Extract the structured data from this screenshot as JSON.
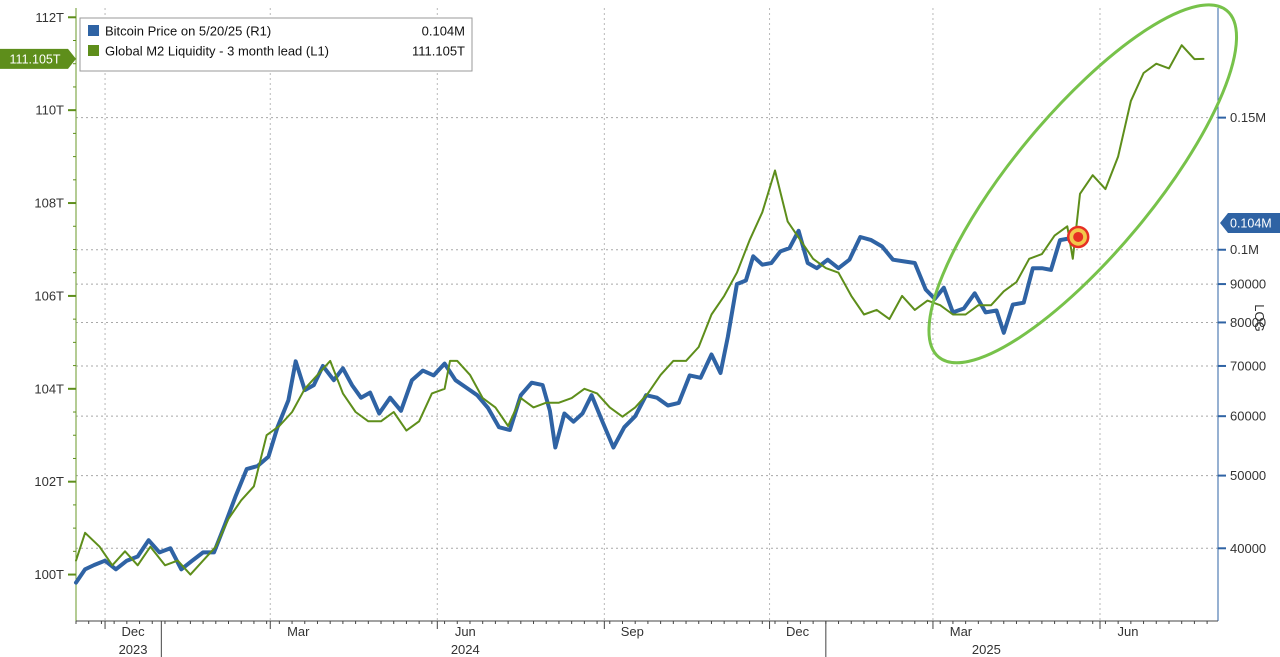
{
  "chart_data": {
    "type": "line",
    "legend": [
      {
        "label": "Bitcoin Price on 5/20/25 (R1)",
        "value": "0.104M",
        "color": "#2f63a4"
      },
      {
        "label": "Global M2 Liquidity - 3 month lead (L1)",
        "value": "111.105T",
        "color": "#5e8e1b"
      }
    ],
    "legend_position": "top-left",
    "grid": true,
    "left_axis": {
      "ticks": [
        {
          "value": 100,
          "label": "100T"
        },
        {
          "value": 102,
          "label": "102T"
        },
        {
          "value": 104,
          "label": "104T"
        },
        {
          "value": 106,
          "label": "106T"
        },
        {
          "value": 108,
          "label": "108T"
        },
        {
          "value": 110,
          "label": "110T"
        },
        {
          "value": 112,
          "label": "112T"
        }
      ],
      "range": [
        99.0,
        112.2
      ],
      "last_value_label": "111.105T"
    },
    "right_axis": {
      "scale": "log",
      "ticks": [
        {
          "value": 40000,
          "label": "40000"
        },
        {
          "value": 50000,
          "label": "50000"
        },
        {
          "value": 60000,
          "label": "60000"
        },
        {
          "value": 70000,
          "label": "70000"
        },
        {
          "value": 80000,
          "label": "80000"
        },
        {
          "value": 90000,
          "label": "90000"
        },
        {
          "value": 100000,
          "label": "0.1M"
        },
        {
          "value": 150000,
          "label": "0.15M"
        }
      ],
      "range": [
        32000,
        210000
      ],
      "last_value_label": "0.104M",
      "scale_label": "LOG"
    },
    "x_axis": {
      "range": [
        "2023-11-15",
        "2025-08-05"
      ],
      "month_labels": [
        {
          "date": "2023-12-01",
          "label": "Dec"
        },
        {
          "date": "2024-03-01",
          "label": "Mar"
        },
        {
          "date": "2024-06-01",
          "label": "Jun"
        },
        {
          "date": "2024-09-01",
          "label": "Sep"
        },
        {
          "date": "2024-12-01",
          "label": "Dec"
        },
        {
          "date": "2025-03-01",
          "label": "Mar"
        },
        {
          "date": "2025-06-01",
          "label": "Jun"
        }
      ],
      "year_labels": [
        {
          "date": "2023-12-01",
          "label": "2023"
        },
        {
          "date": "2024-06-01",
          "label": "2024"
        },
        {
          "date": "2025-03-15",
          "label": "2025"
        }
      ]
    },
    "series": [
      {
        "name": "Bitcoin Price on 5/20/25 (R1)",
        "axis": "right",
        "color": "#2f63a4",
        "points": [
          [
            "2023-11-15",
            36000
          ],
          [
            "2023-11-20",
            37500
          ],
          [
            "2023-11-25",
            38000
          ],
          [
            "2023-12-01",
            38500
          ],
          [
            "2023-12-07",
            37500
          ],
          [
            "2023-12-13",
            38500
          ],
          [
            "2023-12-19",
            39000
          ],
          [
            "2023-12-25",
            41000
          ],
          [
            "2023-12-31",
            39500
          ],
          [
            "2024-01-06",
            40000
          ],
          [
            "2024-01-12",
            37500
          ],
          [
            "2024-01-18",
            38500
          ],
          [
            "2024-01-24",
            39500
          ],
          [
            "2024-01-30",
            39500
          ],
          [
            "2024-02-05",
            43000
          ],
          [
            "2024-02-11",
            47000
          ],
          [
            "2024-02-17",
            51000
          ],
          [
            "2024-02-23",
            51500
          ],
          [
            "2024-02-29",
            53000
          ],
          [
            "2024-03-05",
            58000
          ],
          [
            "2024-03-11",
            63000
          ],
          [
            "2024-03-15",
            71000
          ],
          [
            "2024-03-20",
            65000
          ],
          [
            "2024-03-25",
            66000
          ],
          [
            "2024-03-30",
            70000
          ],
          [
            "2024-04-05",
            67000
          ],
          [
            "2024-04-10",
            69500
          ],
          [
            "2024-04-15",
            66000
          ],
          [
            "2024-04-20",
            63500
          ],
          [
            "2024-04-25",
            64500
          ],
          [
            "2024-04-30",
            60500
          ],
          [
            "2024-05-06",
            63500
          ],
          [
            "2024-05-12",
            61000
          ],
          [
            "2024-05-18",
            67000
          ],
          [
            "2024-05-24",
            69000
          ],
          [
            "2024-05-30",
            68000
          ],
          [
            "2024-06-05",
            70500
          ],
          [
            "2024-06-11",
            67000
          ],
          [
            "2024-06-17",
            65500
          ],
          [
            "2024-06-23",
            64000
          ],
          [
            "2024-06-29",
            61500
          ],
          [
            "2024-07-05",
            58000
          ],
          [
            "2024-07-11",
            57500
          ],
          [
            "2024-07-17",
            64000
          ],
          [
            "2024-07-23",
            66500
          ],
          [
            "2024-07-29",
            66000
          ],
          [
            "2024-08-02",
            61000
          ],
          [
            "2024-08-05",
            54500
          ],
          [
            "2024-08-10",
            60500
          ],
          [
            "2024-08-15",
            59000
          ],
          [
            "2024-08-20",
            60500
          ],
          [
            "2024-08-25",
            64000
          ],
          [
            "2024-08-31",
            59000
          ],
          [
            "2024-09-06",
            54500
          ],
          [
            "2024-09-12",
            58000
          ],
          [
            "2024-09-18",
            60000
          ],
          [
            "2024-09-24",
            64000
          ],
          [
            "2024-09-30",
            63500
          ],
          [
            "2024-10-06",
            62000
          ],
          [
            "2024-10-12",
            62500
          ],
          [
            "2024-10-18",
            68000
          ],
          [
            "2024-10-24",
            67500
          ],
          [
            "2024-10-30",
            72500
          ],
          [
            "2024-11-04",
            68500
          ],
          [
            "2024-11-08",
            76500
          ],
          [
            "2024-11-13",
            90000
          ],
          [
            "2024-11-18",
            91000
          ],
          [
            "2024-11-22",
            98000
          ],
          [
            "2024-11-27",
            95500
          ],
          [
            "2024-12-02",
            96000
          ],
          [
            "2024-12-07",
            99500
          ],
          [
            "2024-12-12",
            100500
          ],
          [
            "2024-12-17",
            106000
          ],
          [
            "2024-12-22",
            96000
          ],
          [
            "2024-12-27",
            94500
          ],
          [
            "2025-01-02",
            97000
          ],
          [
            "2025-01-08",
            94500
          ],
          [
            "2025-01-14",
            97000
          ],
          [
            "2025-01-20",
            104000
          ],
          [
            "2025-01-26",
            103000
          ],
          [
            "2025-02-01",
            101000
          ],
          [
            "2025-02-07",
            97000
          ],
          [
            "2025-02-13",
            96500
          ],
          [
            "2025-02-19",
            96000
          ],
          [
            "2025-02-25",
            88500
          ],
          [
            "2025-03-02",
            86000
          ],
          [
            "2025-03-07",
            89000
          ],
          [
            "2025-03-12",
            82500
          ],
          [
            "2025-03-18",
            83500
          ],
          [
            "2025-03-24",
            87500
          ],
          [
            "2025-03-30",
            82500
          ],
          [
            "2025-04-05",
            83000
          ],
          [
            "2025-04-09",
            77500
          ],
          [
            "2025-04-14",
            84500
          ],
          [
            "2025-04-20",
            85000
          ],
          [
            "2025-04-25",
            94500
          ],
          [
            "2025-04-30",
            94500
          ],
          [
            "2025-05-05",
            94000
          ],
          [
            "2025-05-10",
            103000
          ],
          [
            "2025-05-15",
            103500
          ],
          [
            "2025-05-20",
            104000
          ]
        ]
      },
      {
        "name": "Global M2 Liquidity - 3 month lead (L1)",
        "axis": "left",
        "color": "#5e8e1b",
        "points": [
          [
            "2023-11-15",
            100.3
          ],
          [
            "2023-11-20",
            100.9
          ],
          [
            "2023-11-28",
            100.6
          ],
          [
            "2023-12-05",
            100.2
          ],
          [
            "2023-12-12",
            100.5
          ],
          [
            "2023-12-19",
            100.2
          ],
          [
            "2023-12-26",
            100.6
          ],
          [
            "2024-01-03",
            100.2
          ],
          [
            "2024-01-10",
            100.3
          ],
          [
            "2024-01-17",
            100.0
          ],
          [
            "2024-01-24",
            100.3
          ],
          [
            "2024-01-31",
            100.6
          ],
          [
            "2024-02-07",
            101.2
          ],
          [
            "2024-02-14",
            101.6
          ],
          [
            "2024-02-21",
            101.9
          ],
          [
            "2024-02-28",
            103.0
          ],
          [
            "2024-03-06",
            103.2
          ],
          [
            "2024-03-13",
            103.5
          ],
          [
            "2024-03-20",
            104.0
          ],
          [
            "2024-03-27",
            104.3
          ],
          [
            "2024-04-03",
            104.6
          ],
          [
            "2024-04-10",
            103.9
          ],
          [
            "2024-04-17",
            103.5
          ],
          [
            "2024-04-24",
            103.3
          ],
          [
            "2024-05-01",
            103.3
          ],
          [
            "2024-05-08",
            103.5
          ],
          [
            "2024-05-15",
            103.1
          ],
          [
            "2024-05-22",
            103.3
          ],
          [
            "2024-05-29",
            103.9
          ],
          [
            "2024-06-05",
            104.0
          ],
          [
            "2024-06-08",
            104.6
          ],
          [
            "2024-06-12",
            104.6
          ],
          [
            "2024-06-19",
            104.3
          ],
          [
            "2024-06-26",
            103.8
          ],
          [
            "2024-07-03",
            103.6
          ],
          [
            "2024-07-10",
            103.2
          ],
          [
            "2024-07-17",
            103.8
          ],
          [
            "2024-07-24",
            103.6
          ],
          [
            "2024-07-31",
            103.7
          ],
          [
            "2024-08-07",
            103.7
          ],
          [
            "2024-08-14",
            103.8
          ],
          [
            "2024-08-21",
            104.0
          ],
          [
            "2024-08-28",
            103.9
          ],
          [
            "2024-09-04",
            103.6
          ],
          [
            "2024-09-11",
            103.4
          ],
          [
            "2024-09-18",
            103.6
          ],
          [
            "2024-09-25",
            103.9
          ],
          [
            "2024-10-02",
            104.3
          ],
          [
            "2024-10-09",
            104.6
          ],
          [
            "2024-10-16",
            104.6
          ],
          [
            "2024-10-23",
            104.9
          ],
          [
            "2024-10-30",
            105.6
          ],
          [
            "2024-11-06",
            106.0
          ],
          [
            "2024-11-13",
            106.5
          ],
          [
            "2024-11-20",
            107.2
          ],
          [
            "2024-11-27",
            107.8
          ],
          [
            "2024-12-04",
            108.7
          ],
          [
            "2024-12-11",
            107.6
          ],
          [
            "2024-12-18",
            107.2
          ],
          [
            "2024-12-25",
            106.8
          ],
          [
            "2025-01-01",
            106.6
          ],
          [
            "2025-01-08",
            106.5
          ],
          [
            "2025-01-15",
            106.0
          ],
          [
            "2025-01-22",
            105.6
          ],
          [
            "2025-01-29",
            105.7
          ],
          [
            "2025-02-05",
            105.5
          ],
          [
            "2025-02-12",
            106.0
          ],
          [
            "2025-02-19",
            105.7
          ],
          [
            "2025-02-26",
            105.9
          ],
          [
            "2025-03-05",
            105.8
          ],
          [
            "2025-03-12",
            105.6
          ],
          [
            "2025-03-19",
            105.6
          ],
          [
            "2025-03-26",
            105.8
          ],
          [
            "2025-04-02",
            105.8
          ],
          [
            "2025-04-09",
            106.1
          ],
          [
            "2025-04-16",
            106.3
          ],
          [
            "2025-04-23",
            106.8
          ],
          [
            "2025-04-30",
            106.9
          ],
          [
            "2025-05-07",
            107.3
          ],
          [
            "2025-05-14",
            107.5
          ],
          [
            "2025-05-17",
            106.8
          ],
          [
            "2025-05-21",
            108.2
          ],
          [
            "2025-05-28",
            108.6
          ],
          [
            "2025-06-04",
            108.3
          ],
          [
            "2025-06-11",
            109.0
          ],
          [
            "2025-06-18",
            110.2
          ],
          [
            "2025-06-25",
            110.8
          ],
          [
            "2025-07-02",
            111.0
          ],
          [
            "2025-07-09",
            110.9
          ],
          [
            "2025-07-16",
            111.4
          ],
          [
            "2025-07-23",
            111.1
          ],
          [
            "2025-07-28",
            111.105
          ]
        ]
      }
    ],
    "annotations": [
      {
        "type": "ellipse-highlight",
        "color": "#77c24a"
      },
      {
        "type": "point-marker",
        "date": "2025-05-20",
        "value": 104000,
        "axis": "right",
        "color": "#e63024"
      }
    ]
  }
}
